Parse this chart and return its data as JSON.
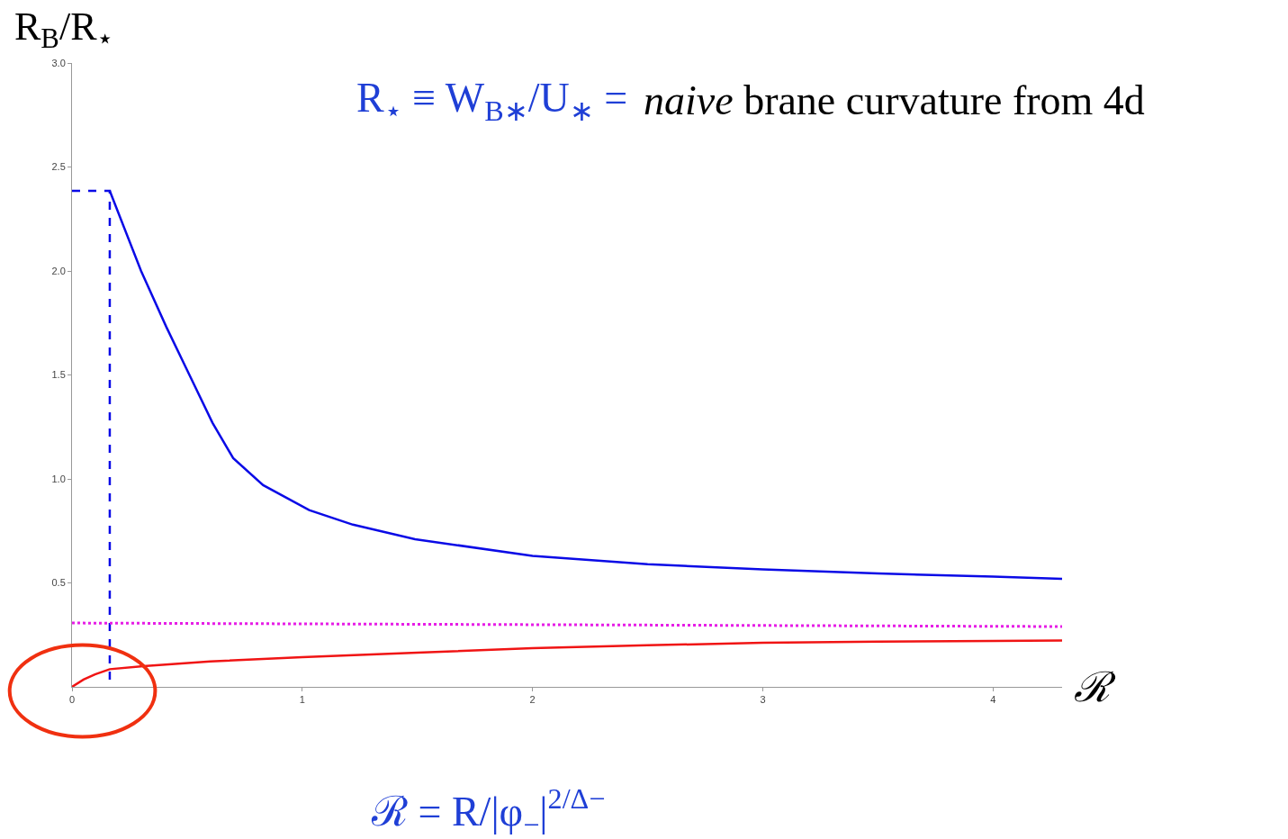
{
  "chart_data": {
    "type": "line",
    "xlabel": "ℛ",
    "ylabel": "R$_{B}$/R$_{⋆}$",
    "xlim": [
      0,
      4.3
    ],
    "xticks": [
      0,
      1,
      2,
      3,
      4
    ],
    "ylim": [
      0,
      3.0
    ],
    "yticks": [
      {
        "value": 0.5,
        "label": "0.5"
      },
      {
        "value": 1.0,
        "label": "1.0"
      },
      {
        "value": 1.5,
        "label": "1.5"
      },
      {
        "value": 2.0,
        "label": "2.0"
      },
      {
        "value": 2.5,
        "label": "2.5"
      },
      {
        "value": 3.0,
        "label": "3.0"
      }
    ],
    "marker": "none",
    "series": [
      {
        "color": "#0a0ae6",
        "line_style": "solid",
        "x": [
          0.164,
          0.3,
          0.41,
          0.51,
          0.61,
          0.7,
          0.83,
          1.03,
          1.22,
          1.49,
          2.0,
          2.5,
          3.0,
          3.5,
          4.0,
          4.3
        ],
        "values": [
          2.385,
          2.0,
          1.73,
          1.5,
          1.27,
          1.1,
          0.97,
          0.85,
          0.78,
          0.71,
          0.63,
          0.59,
          0.565,
          0.545,
          0.53,
          0.52
        ]
      },
      {
        "color": "#0a0ae6",
        "line_style": "dashed",
        "x": [
          0,
          0.164,
          0.164
        ],
        "values": [
          2.385,
          2.385,
          0
        ]
      },
      {
        "color": "#e61ee6",
        "line_style": "dotted",
        "x": [
          0,
          4.3
        ],
        "values": [
          0.307,
          0.29
        ]
      },
      {
        "color": "#f01414",
        "line_style": "solid",
        "x": [
          0,
          0.05,
          0.1,
          0.164,
          0.31,
          0.6,
          1.0,
          1.5,
          2.0,
          2.5,
          3.0,
          3.5,
          4.0,
          4.3
        ],
        "values": [
          0,
          0.035,
          0.06,
          0.085,
          0.1,
          0.122,
          0.143,
          0.165,
          0.186,
          0.2,
          0.212,
          0.217,
          0.221,
          0.223
        ]
      }
    ],
    "annotations": [
      "R$_{⋆}$ ≡ W$_{B∗}$/U$_{∗}$ =",
      "naive brane curvature from 4d",
      "ℛ = R/|φ$_{−}$|$^{2/Δ−}$"
    ]
  }
}
